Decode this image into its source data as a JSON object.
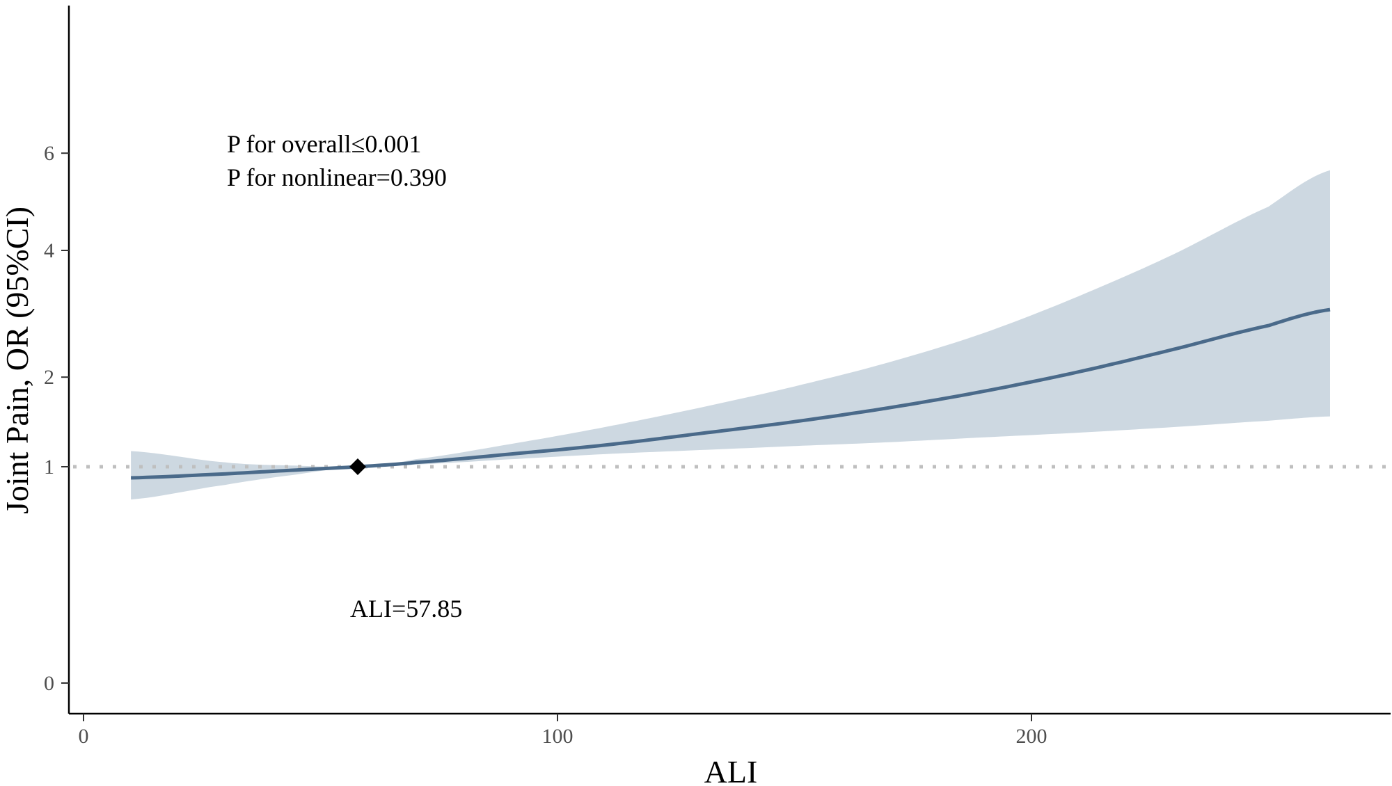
{
  "chart_data": {
    "type": "line",
    "xlabel": "ALI",
    "ylabel": "Joint Pain, OR (95%CI)",
    "xlim": [
      -3,
      275
    ],
    "x_ticks": [
      0,
      100,
      200
    ],
    "y_ticks": [
      0,
      1,
      2,
      4,
      6
    ],
    "y_scale": "sqrt",
    "grid": false,
    "reference_line": {
      "y": 1,
      "style": "dotted",
      "color": "#bfbfbf"
    },
    "series": [
      {
        "line_color": "#4a6a8a",
        "band_color": "#cdd8e1",
        "x": [
          10,
          30,
          45,
          57.85,
          70,
          90,
          110,
          130,
          150,
          170,
          190,
          210,
          230,
          250,
          263
        ],
        "y": [
          0.9,
          0.935,
          0.97,
          1.0,
          1.04,
          1.12,
          1.21,
          1.33,
          1.46,
          1.62,
          1.82,
          2.07,
          2.38,
          2.73,
          2.98
        ],
        "lower": [
          0.72,
          0.84,
          0.93,
          1.0,
          1.02,
          1.07,
          1.12,
          1.16,
          1.2,
          1.24,
          1.29,
          1.34,
          1.4,
          1.47,
          1.52
        ],
        "upper": [
          1.15,
          1.04,
          1.01,
          1.0,
          1.07,
          1.22,
          1.4,
          1.62,
          1.88,
          2.2,
          2.62,
          3.2,
          3.93,
          4.85,
          5.62
        ]
      }
    ],
    "reference_point": {
      "x": 57.85,
      "y": 1
    },
    "annotations": [
      {
        "text": "P for overall≤0.001"
      },
      {
        "text": "P for nonlinear=0.390"
      },
      {
        "text": "ALI=57.85"
      }
    ]
  }
}
